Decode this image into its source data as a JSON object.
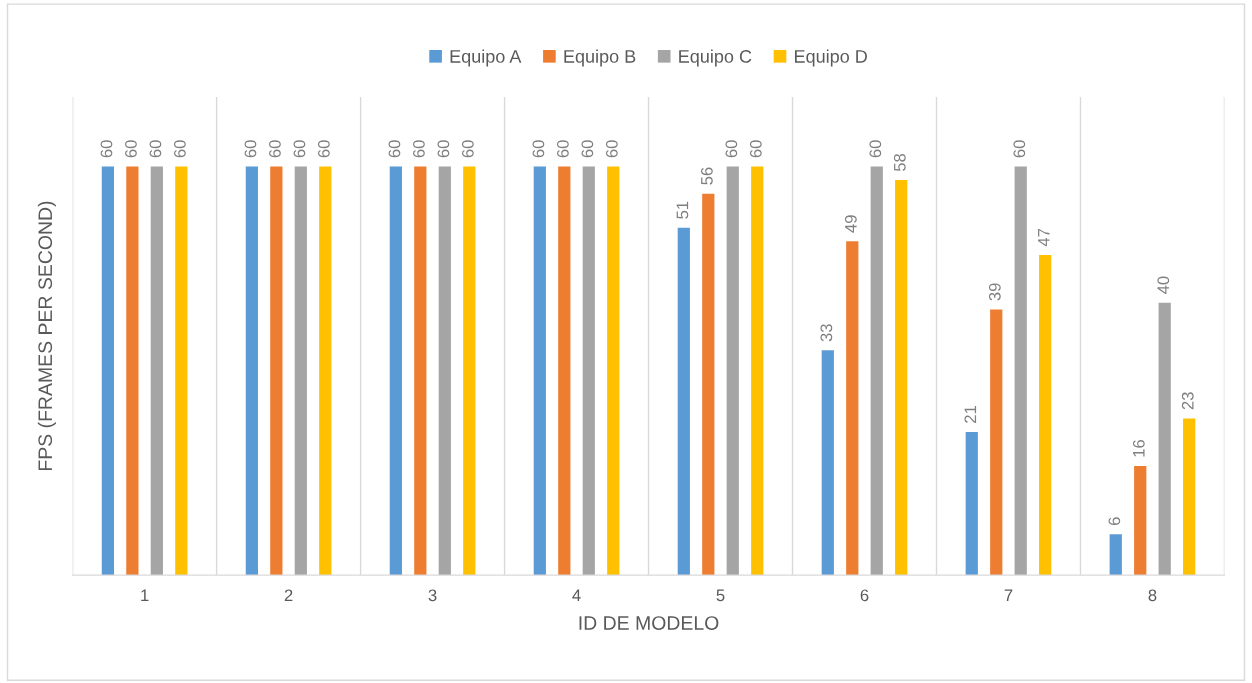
{
  "chart_data": {
    "type": "bar",
    "xlabel": "ID DE MODELO",
    "ylabel": "FPS (FRAMES PER SECOND)",
    "categories": [
      "1",
      "2",
      "3",
      "4",
      "5",
      "6",
      "7",
      "8"
    ],
    "series": [
      {
        "name": "Equipo A",
        "color": "#5b9bd5",
        "values": [
          60,
          60,
          60,
          60,
          51,
          33,
          21,
          6
        ]
      },
      {
        "name": "Equipo B",
        "color": "#ed7d31",
        "values": [
          60,
          60,
          60,
          60,
          56,
          49,
          39,
          16
        ]
      },
      {
        "name": "Equipo C",
        "color": "#a5a5a5",
        "values": [
          60,
          60,
          60,
          60,
          60,
          60,
          60,
          40
        ]
      },
      {
        "name": "Equipo D",
        "color": "#ffc000",
        "values": [
          60,
          60,
          60,
          60,
          60,
          58,
          47,
          23
        ]
      }
    ],
    "data_labels": true,
    "legend": "top",
    "grid": "x",
    "tick_labels": "x"
  }
}
